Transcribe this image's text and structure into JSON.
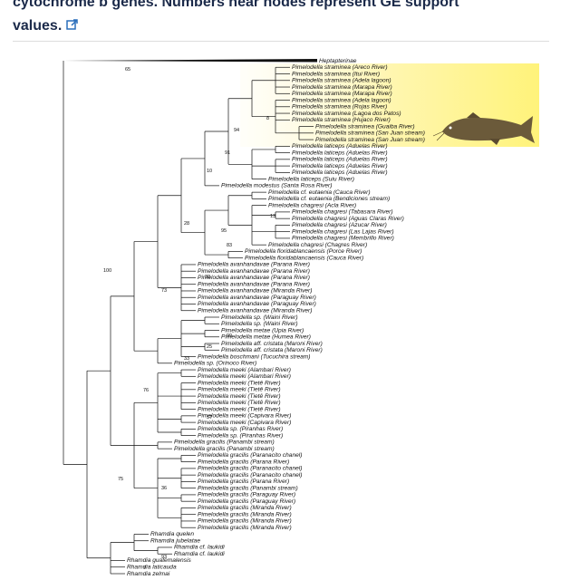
{
  "caption": {
    "text": "cytochrome b genes. Numbers near nodes represent GE support",
    "link_text": "values."
  },
  "tree": {
    "leaves": [
      "Heptapterinae",
      "Pimelodella straminea (Areco River)",
      "Pimelodella straminea (Itui River)",
      "Pimelodella straminea (Adela lagoon)",
      "Pimelodella straminea (Marapa River)",
      "Pimelodella straminea (Marapa River)",
      "Pimelodella straminea (Adela lagoon)",
      "Pimelodella straminea (Rojas River)",
      "Pimelodella straminea (Lagoa dos Patos)",
      "Pimelodella straminea (Hujaco River)",
      "Pimelodella straminea (Guaiba River)",
      "Pimelodella straminea (San Juan stream)",
      "Pimelodella straminea (San Juan stream)",
      "Pimelodella laticeps (Aduelas River)",
      "Pimelodella laticeps (Aduelas River)",
      "Pimelodella laticeps (Aduelas River)",
      "Pimelodella laticeps (Aduelas River)",
      "Pimelodella laticeps (Aduelas River)",
      "Pimelodella laticeps (Suiu River)",
      "Pimelodella modestus (Santa Rosa River)",
      "Pimelodella cf. eutaenia (Cauca River)",
      "Pimelodella cf. eutaenia (Bendiciones stream)",
      "Pimelodella chagresi (Acla River)",
      "Pimelodella chagresi (Tabasara River)",
      "Pimelodella chagresi (Aguas Claras River)",
      "Pimelodella chagresi (Azucar River)",
      "Pimelodella chagresi (Las Lajas River)",
      "Pimelodella chagresi (Membrillo River)",
      "Pimelodella chagresi (Chagres River)",
      "Pimelodella floridablancaensis (Porce River)",
      "Pimelodella floridablancaensis (Cauca River)",
      "Pimelodella avanhandavae (Parana River)",
      "Pimelodella avanhandavae (Parana River)",
      "Pimelodella avanhandavae (Parana River)",
      "Pimelodella avanhandavae (Parana River)",
      "Pimelodella avanhandavae (Miranda River)",
      "Pimelodella avanhandavae (Paraguay River)",
      "Pimelodella avanhandavae (Paraguay River)",
      "Pimelodella avanhandavae (Miranda River)",
      "Pimelodella sp. (Waini River)",
      "Pimelodella sp. (Waini River)",
      "Pimelodella metae (Upia River)",
      "Pimelodella metae (Humea River)",
      "Pimelodella aff. cristata (Maroni River)",
      "Pimelodella aff. cristata (Maroni River)",
      "Pimelodella boschmani (Tucuchira stream)",
      "Pimelodella sp. (Orinoco River)",
      "Pimelodella meeki (Alambari River)",
      "Pimelodella meeki (Alambari River)",
      "Pimelodella meeki (Tietê River)",
      "Pimelodella meeki (Tietê River)",
      "Pimelodella meeki (Tietê River)",
      "Pimelodella meeki (Tietê River)",
      "Pimelodella meeki (Tietê River)",
      "Pimelodella meeki (Capivara River)",
      "Pimelodella meeki (Capivara River)",
      "Pimelodella sp. (Piranhas River)",
      "Pimelodella sp. (Piranhas River)",
      "Pimelodella gracilis (Panambi stream)",
      "Pimelodella gracilis (Panambi stream)",
      "Pimelodella gracilis (Paranacito chanel)",
      "Pimelodella gracilis (Parana River)",
      "Pimelodella gracilis (Paranacito chanel)",
      "Pimelodella gracilis (Paranacito chanel)",
      "Pimelodella gracilis (Parana River)",
      "Pimelodella gracilis (Panambi stream)",
      "Pimelodella gracilis (Paraguay River)",
      "Pimelodella gracilis (Paraguay River)",
      "Pimelodella gracilis (Miranda River)",
      "Pimelodella gracilis (Miranda River)",
      "Pimelodella gracilis (Miranda River)",
      "Pimelodella gracilis (Miranda River)",
      "Rhamdia quelen",
      "Rhamdia jubelatae",
      "Rhamdia cf. laukidi",
      "Rhamdia cf. laukidi",
      "Rhamdia guatemalensis",
      "Rhamdia laticauda",
      "Rhamdia zelmai"
    ],
    "supports": [
      "65",
      "100",
      "91",
      "10",
      "94",
      "8",
      "28",
      "73",
      "30",
      "95",
      "83",
      "13",
      "76",
      "57",
      "75",
      "36",
      "25",
      "33",
      "99",
      "7",
      "93"
    ]
  }
}
